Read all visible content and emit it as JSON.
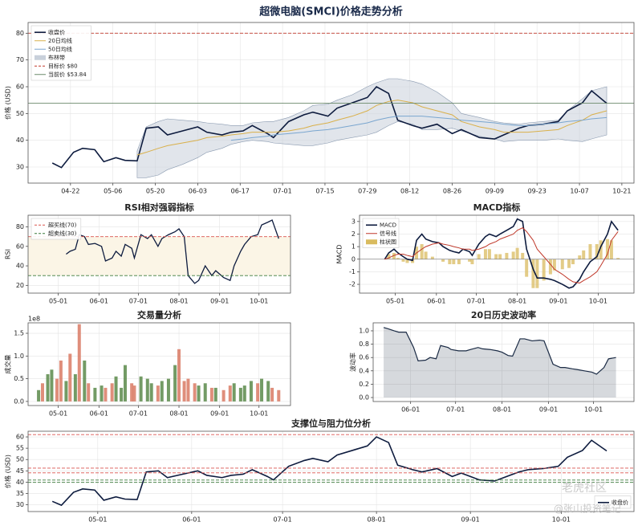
{
  "chart_data": [
    {
      "type": "line",
      "title": "超微电脑(SMCI)价格走势分析",
      "ylabel": "价格 (USD)",
      "x": [
        "04-16",
        "04-19",
        "04-23",
        "04-26",
        "04-30",
        "05-03",
        "05-07",
        "05-10",
        "05-14",
        "05-17",
        "05-21",
        "05-24",
        "05-29",
        "06-03",
        "06-06",
        "06-11",
        "06-14",
        "06-18",
        "06-21",
        "06-26",
        "06-28",
        "07-03",
        "07-08",
        "07-11",
        "07-16",
        "07-19",
        "07-24",
        "07-29",
        "08-01",
        "08-05",
        "08-08",
        "08-13",
        "08-16",
        "08-21",
        "08-26",
        "08-29",
        "09-04",
        "09-09",
        "09-12",
        "09-17",
        "09-20",
        "09-25",
        "09-30",
        "10-03",
        "10-08",
        "10-11",
        "10-16"
      ],
      "xlim": [
        "04-08",
        "10-25"
      ],
      "xticks": [
        "04-22",
        "05-06",
        "05-20",
        "06-03",
        "06-17",
        "07-01",
        "07-15",
        "07-29",
        "08-12",
        "08-26",
        "09-09",
        "09-23",
        "10-07",
        "10-21"
      ],
      "ylim": [
        24,
        84
      ],
      "yticks": [
        30,
        40,
        50,
        60,
        70,
        80
      ],
      "grid": true,
      "legend": "upper left",
      "series": [
        {
          "name": "收盘价",
          "color": "#0d1b3e",
          "values": [
            31.5,
            29.8,
            35.5,
            37,
            36.5,
            32,
            33.5,
            32.5,
            32.3,
            44.5,
            45,
            42,
            43.5,
            45,
            43,
            42,
            43,
            43.5,
            45.5,
            42.5,
            41,
            47,
            49.5,
            50.5,
            49,
            52,
            54,
            56,
            60,
            57.5,
            47.5,
            45.5,
            44.5,
            46,
            42.5,
            44,
            41,
            40.5,
            42,
            44.5,
            45.5,
            46,
            47,
            51,
            54,
            58.5,
            53.8
          ]
        },
        {
          "name": "20日均线",
          "color": "#d9b04a",
          "values": [
            null,
            null,
            null,
            null,
            null,
            null,
            null,
            null,
            34.5,
            35.5,
            37,
            38,
            39,
            40,
            41,
            41.5,
            42,
            42.5,
            43,
            43,
            43,
            43.5,
            44.5,
            45.5,
            46.5,
            47.5,
            49,
            51,
            53,
            54.5,
            55,
            54,
            52.5,
            51,
            49.5,
            47,
            45,
            44,
            43,
            43,
            43,
            43.5,
            44,
            45.5,
            47.5,
            49.5,
            51
          ]
        },
        {
          "name": "50日均线",
          "color": "#7aa6cf",
          "values": [
            null,
            null,
            null,
            null,
            null,
            null,
            null,
            null,
            null,
            null,
            null,
            null,
            null,
            null,
            null,
            null,
            40,
            40.5,
            41,
            41.5,
            42,
            42.5,
            43,
            43.5,
            44,
            44.5,
            45.5,
            46.5,
            47.5,
            48.5,
            49,
            49,
            49,
            48.5,
            48,
            47.5,
            47,
            46.5,
            46,
            45.5,
            45.5,
            46,
            46.5,
            47,
            47.5,
            48,
            48.5
          ]
        }
      ],
      "band": {
        "name": "布林带",
        "color": "#c8d0da",
        "upper": [
          null,
          null,
          null,
          null,
          null,
          null,
          null,
          null,
          36,
          45,
          47,
          48,
          47.5,
          47,
          46.5,
          46,
          45.5,
          45.5,
          46.5,
          47,
          47,
          48.5,
          51,
          53,
          53.5,
          55,
          57,
          60,
          61.5,
          63,
          63,
          62,
          61,
          58,
          54,
          50,
          48.5,
          47,
          46.5,
          46,
          46.5,
          47,
          47.5,
          51,
          55.5,
          58.5,
          60
        ],
        "lower": [
          null,
          null,
          null,
          null,
          null,
          null,
          null,
          null,
          26,
          26,
          27,
          29,
          31,
          33.5,
          35.5,
          37,
          38.5,
          39.5,
          40,
          39.5,
          39,
          38.5,
          38,
          38,
          39,
          40,
          41,
          42,
          43,
          45.5,
          47,
          46,
          44,
          44,
          44.5,
          43.5,
          41.5,
          40.5,
          39.5,
          40,
          40,
          40,
          40.5,
          40,
          39.5,
          40.5,
          42
        ]
      },
      "hlines": [
        {
          "name": "目标价 $80",
          "value": 80,
          "color": "#c0392b",
          "style": "dashed"
        },
        {
          "name": "当前价 $53.84",
          "value": 53.84,
          "color": "#6b8a6b",
          "style": "solid"
        }
      ]
    },
    {
      "type": "line",
      "title": "RSI相对强弱指标",
      "ylabel": "RSI",
      "x": [
        "05-07",
        "05-10",
        "05-14",
        "05-17",
        "05-21",
        "05-24",
        "05-29",
        "06-03",
        "06-06",
        "06-11",
        "06-14",
        "06-18",
        "06-21",
        "06-26",
        "06-28",
        "07-03",
        "07-08",
        "07-11",
        "07-16",
        "07-19",
        "07-24",
        "07-29",
        "08-01",
        "08-05",
        "08-08",
        "08-13",
        "08-16",
        "08-21",
        "08-26",
        "08-29",
        "09-04",
        "09-09",
        "09-12",
        "09-17",
        "09-20",
        "09-25",
        "09-30",
        "10-03",
        "10-08",
        "10-11",
        "10-16"
      ],
      "values": [
        52,
        55,
        57,
        72,
        70,
        62,
        63,
        60,
        45,
        48,
        55,
        50,
        62,
        58,
        48,
        72,
        68,
        72,
        60,
        68,
        72,
        75,
        78,
        70,
        30,
        22,
        25,
        40,
        30,
        35,
        28,
        25,
        40,
        55,
        62,
        70,
        72,
        82,
        85,
        87,
        68
      ],
      "color": "#0d1b3e",
      "zone": "#fbf5e6",
      "xlim": [
        "04-08",
        "10-25"
      ],
      "xticks": [
        "05-01",
        "06-01",
        "07-01",
        "08-01",
        "09-01",
        "10-01"
      ],
      "ylim": [
        12,
        92
      ],
      "yticks": [
        20,
        40,
        60,
        80
      ],
      "grid": true,
      "legend": "upper left",
      "hlines": [
        {
          "name": "超买线(70)",
          "value": 70,
          "color": "#d9534f",
          "style": "dashed"
        },
        {
          "name": "超卖线(30)",
          "value": 30,
          "color": "#3a7a3a",
          "style": "dashed"
        }
      ]
    },
    {
      "type": "line",
      "title": "MACD指标",
      "ylabel": "MACD",
      "x": [
        "04-23",
        "04-26",
        "04-30",
        "05-03",
        "05-07",
        "05-10",
        "05-14",
        "05-17",
        "05-21",
        "05-24",
        "05-29",
        "06-03",
        "06-06",
        "06-11",
        "06-14",
        "06-18",
        "06-21",
        "06-26",
        "06-28",
        "07-03",
        "07-08",
        "07-11",
        "07-16",
        "07-19",
        "07-24",
        "07-29",
        "08-01",
        "08-05",
        "08-08",
        "08-13",
        "08-16",
        "08-21",
        "08-26",
        "08-29",
        "09-04",
        "09-09",
        "09-12",
        "09-17",
        "09-20",
        "09-25",
        "09-30",
        "10-03",
        "10-08",
        "10-11",
        "10-16"
      ],
      "xlim": [
        "04-04",
        "10-28"
      ],
      "xticks": [
        "05-01",
        "06-01",
        "07-01",
        "08-01",
        "09-01",
        "10-01"
      ],
      "ylim": [
        -2.7,
        3.5
      ],
      "yticks": [
        -2,
        -1,
        0,
        1,
        2,
        3
      ],
      "grid": true,
      "legend": "upper left",
      "series": [
        {
          "name": "MACD",
          "color": "#0d1b3e",
          "values": [
            0,
            0.5,
            0.8,
            0.5,
            0.2,
            0,
            -0.1,
            1.5,
            2.0,
            1.6,
            1.4,
            1.3,
            1.0,
            0.7,
            0.6,
            0.5,
            0.8,
            0.6,
            0.3,
            1.2,
            1.8,
            2.0,
            1.8,
            2.0,
            2.3,
            2.6,
            3.2,
            3.0,
            0.8,
            -0.8,
            -1.5,
            -1.5,
            -1.6,
            -1.7,
            -2.0,
            -2.3,
            -2.2,
            -1.6,
            -1.0,
            -0.2,
            0.2,
            1.0,
            2.0,
            3.0,
            2.3
          ]
        },
        {
          "name": "信号线",
          "color": "#c0392b",
          "values": [
            0,
            0.1,
            0.3,
            0.4,
            0.4,
            0.3,
            0.2,
            0.5,
            0.8,
            1.0,
            1.2,
            1.3,
            1.2,
            1.1,
            1.0,
            0.9,
            0.8,
            0.8,
            0.7,
            0.8,
            1.0,
            1.2,
            1.4,
            1.6,
            1.8,
            2.0,
            2.3,
            2.5,
            2.2,
            1.5,
            0.8,
            0.2,
            -0.4,
            -0.8,
            -1.2,
            -1.6,
            -1.8,
            -1.9,
            -1.7,
            -1.4,
            -1.0,
            -0.5,
            0.4,
            1.5,
            2.2
          ]
        }
      ],
      "bars": {
        "name": "柱状图",
        "color": "#d9bb5f",
        "values": [
          0,
          0.4,
          0.5,
          0.1,
          -0.2,
          -0.3,
          -0.3,
          1.0,
          1.2,
          0.6,
          0.2,
          0,
          -0.2,
          -0.4,
          -0.4,
          -0.4,
          0,
          -0.2,
          -0.4,
          0.4,
          0.8,
          0.8,
          0.4,
          0.4,
          0.5,
          0.6,
          0.9,
          0.5,
          -1.4,
          -2.3,
          -2.3,
          -1.7,
          -1.2,
          -0.9,
          -0.8,
          -0.7,
          -0.4,
          0.3,
          0.7,
          1.2,
          1.2,
          1.5,
          1.6,
          1.5,
          0.1
        ]
      }
    },
    {
      "type": "bar",
      "title": "交易量分析",
      "ylabel": "成交量",
      "offset_label": "1e8",
      "x": [
        "04-16",
        "04-19",
        "04-23",
        "04-26",
        "04-30",
        "05-03",
        "05-07",
        "05-10",
        "05-14",
        "05-17",
        "05-21",
        "05-24",
        "05-29",
        "06-03",
        "06-06",
        "06-11",
        "06-14",
        "06-18",
        "06-21",
        "06-26",
        "06-28",
        "07-03",
        "07-08",
        "07-11",
        "07-16",
        "07-19",
        "07-24",
        "07-29",
        "08-01",
        "08-05",
        "08-08",
        "08-13",
        "08-16",
        "08-21",
        "08-26",
        "08-29",
        "09-04",
        "09-09",
        "09-12",
        "09-17",
        "09-20",
        "09-25",
        "09-30",
        "10-03",
        "10-08",
        "10-11",
        "10-16"
      ],
      "values": [
        0.25,
        0.4,
        0.6,
        0.7,
        0.5,
        0.9,
        0.45,
        1.05,
        0.6,
        1.7,
        0.9,
        0.4,
        0.3,
        0.35,
        0.3,
        0.4,
        0.55,
        0.3,
        0.8,
        0.4,
        0.35,
        0.55,
        0.5,
        0.4,
        0.35,
        0.45,
        0.5,
        0.8,
        1.15,
        0.45,
        0.5,
        0.4,
        0.35,
        0.4,
        0.3,
        0.3,
        0.25,
        0.35,
        0.4,
        0.3,
        0.35,
        0.45,
        0.4,
        0.5,
        0.45,
        0.3,
        0.25
      ],
      "colors": [
        "#5a8a4a",
        "#d97a64",
        "#5a8a4a",
        "#5a8a4a",
        "#d97a64",
        "#d97a64",
        "#5a8a4a",
        "#d97a64",
        "#5a8a4a",
        "#d97a64",
        "#5a8a4a",
        "#d97a64",
        "#5a8a4a",
        "#5a8a4a",
        "#d97a64",
        "#d97a64",
        "#5a8a4a",
        "#5a8a4a",
        "#5a8a4a",
        "#d97a64",
        "#d97a64",
        "#5a8a4a",
        "#5a8a4a",
        "#5a8a4a",
        "#d97a64",
        "#5a8a4a",
        "#5a8a4a",
        "#5a8a4a",
        "#d97a64",
        "#d97a64",
        "#d97a64",
        "#d97a64",
        "#5a8a4a",
        "#5a8a4a",
        "#d97a64",
        "#5a8a4a",
        "#d97a64",
        "#d97a64",
        "#5a8a4a",
        "#5a8a4a",
        "#5a8a4a",
        "#5a8a4a",
        "#d97a64",
        "#5a8a4a",
        "#5a8a4a",
        "#d97a64",
        "#d97a64"
      ],
      "xlim": [
        "04-08",
        "10-25"
      ],
      "xticks": [
        "05-01",
        "06-01",
        "07-01",
        "08-01",
        "09-01",
        "10-01"
      ],
      "ylim": [
        -0.09,
        1.73
      ],
      "yticks": [
        {
          "value": 0,
          "label": "0.0"
        },
        0.5,
        {
          "value": 1,
          "label": "1.0"
        },
        1.5
      ],
      "grid": true
    },
    {
      "type": "area",
      "title": "20日历史波动率",
      "ylabel": "波动率",
      "x": [
        "05-14",
        "05-17",
        "05-21",
        "05-24",
        "05-29",
        "06-03",
        "06-06",
        "06-11",
        "06-14",
        "06-18",
        "06-21",
        "06-26",
        "06-28",
        "07-03",
        "07-08",
        "07-11",
        "07-16",
        "07-19",
        "07-24",
        "07-29",
        "08-01",
        "08-05",
        "08-08",
        "08-13",
        "08-16",
        "08-21",
        "08-26",
        "08-29",
        "09-04",
        "09-09",
        "09-12",
        "09-17",
        "09-20",
        "09-25",
        "09-30",
        "10-03",
        "10-08",
        "10-11",
        "10-16"
      ],
      "values": [
        1.05,
        1.03,
        1.0,
        0.98,
        0.98,
        0.75,
        0.55,
        0.56,
        0.6,
        0.58,
        0.78,
        0.75,
        0.72,
        0.7,
        0.7,
        0.72,
        0.75,
        0.73,
        0.72,
        0.7,
        0.68,
        0.63,
        0.62,
        0.88,
        0.88,
        0.85,
        0.86,
        0.85,
        0.5,
        0.45,
        0.45,
        0.43,
        0.42,
        0.4,
        0.38,
        0.35,
        0.45,
        0.58,
        0.6
      ],
      "color": "#1a2a44",
      "xlim": [
        "05-07",
        "10-28"
      ],
      "xticks": [
        "06-01",
        "07-01",
        "08-01",
        "09-01",
        "10-01"
      ],
      "ylim": [
        -0.06,
        1.12
      ],
      "yticks": [
        {
          "value": 0,
          "label": "0.0"
        },
        0.2,
        0.4,
        0.6,
        0.8,
        {
          "value": 1,
          "label": "1.0"
        }
      ],
      "grid": true
    },
    {
      "type": "line",
      "title": "支撑位与阻力位分析",
      "ylabel": "价格 (USD)",
      "x": [
        "04-16",
        "04-19",
        "04-23",
        "04-26",
        "04-30",
        "05-03",
        "05-07",
        "05-10",
        "05-14",
        "05-17",
        "05-21",
        "05-24",
        "05-29",
        "06-03",
        "06-06",
        "06-11",
        "06-14",
        "06-18",
        "06-21",
        "06-26",
        "06-28",
        "07-03",
        "07-08",
        "07-11",
        "07-16",
        "07-19",
        "07-24",
        "07-29",
        "08-01",
        "08-05",
        "08-08",
        "08-13",
        "08-16",
        "08-21",
        "08-26",
        "08-29",
        "09-04",
        "09-09",
        "09-12",
        "09-17",
        "09-20",
        "09-25",
        "09-30",
        "10-03",
        "10-08",
        "10-11",
        "10-16"
      ],
      "xlim": [
        "04-08",
        "10-25"
      ],
      "xticks": [
        "05-01",
        "06-01",
        "07-01",
        "08-01",
        "09-01",
        "10-01"
      ],
      "ylim": [
        27,
        62.5
      ],
      "yticks": [
        30,
        35,
        40,
        45,
        50,
        55,
        60
      ],
      "grid": true,
      "legend": "lower right",
      "series": [
        {
          "name": "收盘价",
          "color": "#0d1b3e",
          "values": [
            31.5,
            29.8,
            35.5,
            37,
            36.5,
            32,
            33.5,
            32.5,
            32.3,
            44.5,
            45,
            42,
            43.5,
            45,
            43,
            42,
            43,
            43.5,
            45.5,
            42.5,
            41,
            47,
            49.5,
            50.5,
            49,
            52,
            54,
            56,
            60,
            57.5,
            47.5,
            45.5,
            44.5,
            46,
            42.5,
            44,
            41,
            40.5,
            42,
            44.5,
            45.5,
            46,
            47,
            51,
            54,
            58.5,
            53.8
          ]
        }
      ],
      "hlines": [
        {
          "value": 61,
          "color": "#d9534f",
          "style": "dashed"
        },
        {
          "value": 46.2,
          "color": "#d9534f",
          "style": "dashed"
        },
        {
          "value": 44.1,
          "color": "#d9534f",
          "style": "dashed"
        },
        {
          "value": 40.9,
          "color": "#3a7a3a",
          "style": "dashed"
        },
        {
          "value": 39.9,
          "color": "#3a7a3a",
          "style": "dashed"
        }
      ]
    }
  ],
  "watermark": {
    "logo": "老虎社区",
    "author": "@张山投资笔记"
  }
}
